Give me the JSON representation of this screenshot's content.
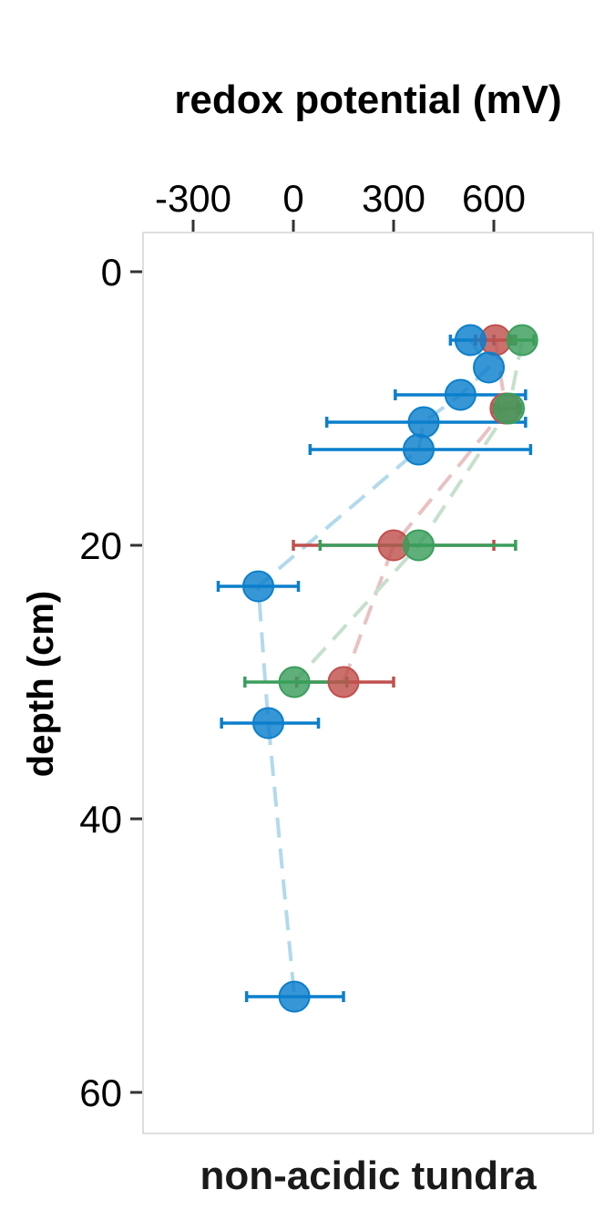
{
  "chart_data": {
    "type": "scatter",
    "title": "redox potential (mV)",
    "xlabel": "non-acidic tundra",
    "ylabel": "depth (cm)",
    "x_ticks": [
      -300,
      0,
      300,
      600
    ],
    "y_ticks": [
      0,
      20,
      40,
      60
    ],
    "xlim": [
      -450,
      900
    ],
    "ylim": [
      -3,
      63
    ],
    "y_reversed": true,
    "grid": false,
    "legend": "none",
    "series": [
      {
        "color": "#0b7fcc",
        "line_color": "#b3d9ec",
        "points": [
          {
            "x": 530,
            "y": 5,
            "err_low": 470,
            "err_high": 600
          },
          {
            "x": 585,
            "y": 7
          },
          {
            "x": 500,
            "y": 9,
            "err_low": 305,
            "err_high": 695
          },
          {
            "x": 390,
            "y": 11,
            "err_low": 100,
            "err_high": 695
          },
          {
            "x": 375,
            "y": 13,
            "err_low": 50,
            "err_high": 710
          },
          {
            "x": -105,
            "y": 23,
            "err_low": -225,
            "err_high": 15
          },
          {
            "x": -75,
            "y": 33,
            "err_low": -215,
            "err_high": 75
          },
          {
            "x": 3,
            "y": 53,
            "err_low": -140,
            "err_high": 150
          }
        ]
      },
      {
        "color": "#c0504d",
        "line_color": "#e8c2c2",
        "points": [
          {
            "x": 605,
            "y": 5,
            "err_low": 545,
            "err_high": 665
          },
          {
            "x": 635,
            "y": 10,
            "err_low": 600,
            "err_high": 670
          },
          {
            "x": 300,
            "y": 20,
            "err_low": 0,
            "err_high": 600
          },
          {
            "x": 150,
            "y": 30,
            "err_low": 10,
            "err_high": 300
          }
        ]
      },
      {
        "color": "#3a9e5c",
        "line_color": "#c6e0cc",
        "points": [
          {
            "x": 685,
            "y": 5,
            "err_low": 655,
            "err_high": 720
          },
          {
            "x": 645,
            "y": 10,
            "err_low": 615,
            "err_high": 680
          },
          {
            "x": 375,
            "y": 20,
            "err_low": 80,
            "err_high": 665
          },
          {
            "x": 3,
            "y": 30,
            "err_low": -145,
            "err_high": 160
          }
        ]
      }
    ]
  }
}
